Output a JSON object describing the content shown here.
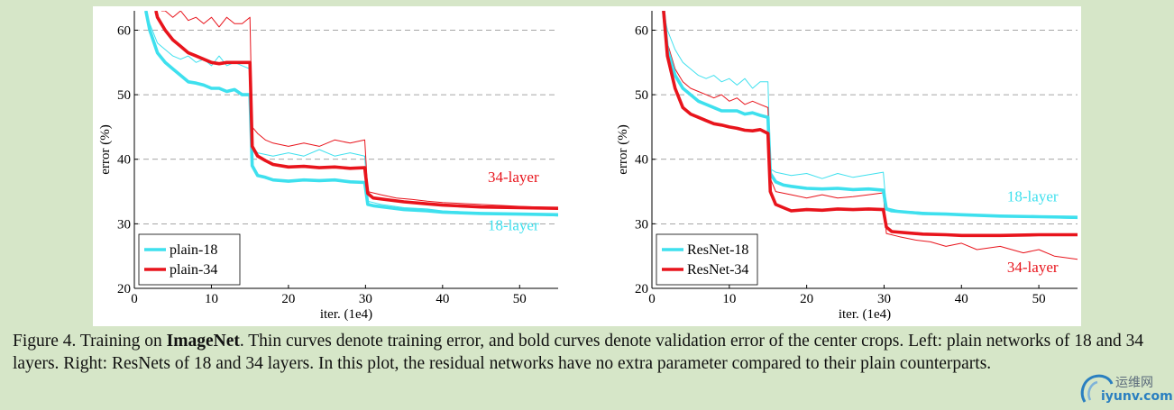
{
  "chart_data": [
    {
      "type": "line",
      "xlabel": "iter. (1e4)",
      "ylabel": "error (%)",
      "xlim": [
        0,
        55
      ],
      "ylim": [
        20,
        63
      ],
      "xticks": [
        0,
        10,
        20,
        30,
        40,
        50
      ],
      "yticks": [
        20,
        30,
        40,
        50,
        60
      ],
      "grid": "horizontal dashed",
      "legend": "bottom-left",
      "annotations": [
        {
          "text": "34-layer",
          "x": 52.5,
          "y": 36.5,
          "color": "#e8141c"
        },
        {
          "text": "18-layer",
          "x": 52.5,
          "y": 29.0,
          "color": "#3ee0ee"
        }
      ],
      "series": [
        {
          "name": "plain-18",
          "kind": "validation",
          "color": "#3ee0ee",
          "x": [
            1.5,
            2,
            3,
            4,
            5,
            6,
            7,
            8,
            9,
            10,
            11,
            12,
            13,
            14,
            15,
            15.3,
            16,
            17,
            18,
            20,
            22,
            24,
            26,
            28,
            29.9,
            30.3,
            31,
            33,
            35,
            38,
            40,
            45,
            50,
            55
          ],
          "y": [
            63,
            60,
            56.5,
            55,
            54,
            53,
            52,
            51.8,
            51.5,
            51,
            51,
            50.5,
            50.8,
            50,
            50,
            39,
            37.5,
            37.2,
            36.8,
            36.6,
            36.8,
            36.7,
            36.8,
            36.5,
            36.4,
            33,
            32.8,
            32.5,
            32.2,
            32,
            31.8,
            31.6,
            31.5,
            31.4
          ]
        },
        {
          "name": "plain-34",
          "kind": "validation",
          "color": "#e8141c",
          "x": [
            2.8,
            3,
            4,
            5,
            6,
            7,
            8,
            9,
            10,
            11,
            12,
            13,
            14,
            15,
            15.3,
            16,
            17,
            18,
            20,
            22,
            24,
            26,
            28,
            29.9,
            30.3,
            31,
            33,
            35,
            38,
            40,
            45,
            50,
            55
          ],
          "y": [
            63,
            62,
            60,
            58.5,
            57.5,
            56.5,
            56,
            55.5,
            55,
            54.8,
            55,
            55,
            55,
            55,
            42,
            40.5,
            39.8,
            39.2,
            38.8,
            38.9,
            38.7,
            38.8,
            38.6,
            38.7,
            34.7,
            34,
            33.7,
            33.4,
            33.1,
            32.9,
            32.6,
            32.5,
            32.4
          ]
        },
        {
          "name": "",
          "kind": "training",
          "label_ref": "plain-18",
          "color": "#3ee0ee",
          "x": [
            1.5,
            2,
            3,
            4,
            5,
            6,
            7,
            8,
            9,
            10,
            11,
            12,
            13,
            14,
            15,
            15.3,
            16,
            18,
            20,
            22,
            24,
            26,
            28,
            29.9,
            30.3,
            32,
            35,
            38,
            40,
            45,
            50,
            55
          ],
          "y": [
            63,
            61,
            58,
            57,
            56,
            55.5,
            56,
            55,
            55.5,
            54.5,
            56,
            54.5,
            55,
            54.5,
            54,
            42,
            41,
            40.5,
            41,
            40.5,
            41.5,
            40.5,
            41,
            40.5,
            33.5,
            33,
            32.5,
            32.3,
            32,
            31.7,
            31.5,
            31.2
          ]
        },
        {
          "name": "",
          "kind": "training",
          "label_ref": "plain-34",
          "color": "#e8141c",
          "x": [
            3.5,
            4,
            5,
            6,
            7,
            8,
            9,
            10,
            11,
            12,
            13,
            14,
            15,
            15.3,
            16,
            17,
            18,
            20,
            22,
            24,
            26,
            28,
            29.9,
            30.3,
            32,
            34,
            36,
            38,
            40,
            45,
            50,
            55
          ],
          "y": [
            63,
            63,
            62,
            63,
            61.5,
            62,
            61,
            62,
            60.5,
            62,
            61,
            61,
            62,
            45,
            44,
            43,
            42.5,
            42,
            42.5,
            42,
            43,
            42.5,
            43,
            35,
            34.5,
            34,
            33.8,
            33.5,
            33.3,
            33,
            32.7,
            32.5
          ]
        }
      ],
      "legend_entries": [
        "plain-18",
        "plain-34"
      ]
    },
    {
      "type": "line",
      "xlabel": "iter. (1e4)",
      "ylabel": "error (%)",
      "xlim": [
        0,
        55
      ],
      "ylim": [
        20,
        63
      ],
      "xticks": [
        0,
        10,
        20,
        30,
        40,
        50
      ],
      "yticks": [
        20,
        30,
        40,
        50,
        60
      ],
      "grid": "horizontal dashed",
      "legend": "bottom-left",
      "annotations": [
        {
          "text": "18-layer",
          "x": 52.5,
          "y": 33.5,
          "color": "#3ee0ee"
        },
        {
          "text": "34-layer",
          "x": 52.5,
          "y": 22.5,
          "color": "#e8141c"
        }
      ],
      "series": [
        {
          "name": "ResNet-18",
          "kind": "validation",
          "color": "#3ee0ee",
          "x": [
            1.5,
            2,
            3,
            4,
            5,
            6,
            7,
            8,
            9,
            10,
            11,
            12,
            13,
            14,
            15,
            15.3,
            16,
            17,
            18,
            20,
            22,
            24,
            26,
            28,
            29.9,
            30.3,
            31,
            33,
            35,
            38,
            40,
            45,
            50,
            55
          ],
          "y": [
            63,
            57,
            53,
            51,
            50,
            49,
            48.5,
            48,
            47.5,
            47.5,
            47.5,
            47,
            47.2,
            46.8,
            46.5,
            37.8,
            36.5,
            36,
            35.8,
            35.5,
            35.4,
            35.5,
            35.3,
            35.4,
            35.2,
            32.3,
            32,
            31.8,
            31.6,
            31.5,
            31.4,
            31.2,
            31.1,
            31.0
          ]
        },
        {
          "name": "ResNet-34",
          "kind": "validation",
          "color": "#e8141c",
          "x": [
            1.5,
            2,
            3,
            4,
            5,
            6,
            7,
            8,
            9,
            10,
            11,
            12,
            13,
            14,
            15,
            15.3,
            16,
            17,
            18,
            20,
            22,
            24,
            26,
            28,
            29.9,
            30.3,
            31,
            33,
            35,
            38,
            40,
            45,
            50,
            55
          ],
          "y": [
            63,
            56,
            51,
            48,
            47,
            46.5,
            46,
            45.5,
            45.3,
            45,
            44.8,
            44.5,
            44.4,
            44.6,
            44,
            35,
            33,
            32.5,
            32,
            32.2,
            32.1,
            32.3,
            32.2,
            32.3,
            32.2,
            29.5,
            28.8,
            28.6,
            28.4,
            28.3,
            28.2,
            28.2,
            28.3,
            28.3
          ]
        },
        {
          "name": "",
          "kind": "training",
          "label_ref": "ResNet-18",
          "color": "#3ee0ee",
          "x": [
            1.5,
            2,
            3,
            4,
            5,
            6,
            7,
            8,
            9,
            10,
            11,
            12,
            13,
            14,
            15,
            15.3,
            16,
            18,
            20,
            22,
            24,
            26,
            28,
            29.9,
            30.3,
            32,
            35,
            38,
            40,
            45,
            50,
            55
          ],
          "y": [
            63,
            60,
            57,
            55,
            54,
            53,
            52.5,
            53,
            52,
            52.5,
            51.5,
            52.5,
            51,
            52,
            52,
            38.5,
            38,
            37.5,
            37.8,
            37,
            37.8,
            37.2,
            37.6,
            38,
            32.5,
            32,
            31.8,
            31.5,
            31.3,
            31.1,
            31.0,
            30.8
          ]
        },
        {
          "name": "",
          "kind": "training",
          "label_ref": "ResNet-34",
          "color": "#e8141c",
          "x": [
            1.5,
            2,
            3,
            4,
            5,
            6,
            7,
            8,
            9,
            10,
            11,
            12,
            13,
            14,
            15,
            15.3,
            16,
            18,
            20,
            22,
            24,
            26,
            28,
            29.9,
            30.3,
            32,
            34,
            36,
            38,
            40,
            42,
            45,
            48,
            50,
            52,
            55
          ],
          "y": [
            63,
            58,
            54,
            52,
            51,
            50.5,
            50,
            49.5,
            50,
            49,
            49.5,
            48.5,
            49,
            48.5,
            48,
            37,
            35,
            34.5,
            34,
            34.5,
            34,
            34.2,
            34.5,
            34.8,
            28.5,
            28,
            27.5,
            27.2,
            26.5,
            27,
            26,
            26.5,
            25.5,
            26,
            25,
            24.5
          ]
        }
      ],
      "legend_entries": [
        "ResNet-18",
        "ResNet-34"
      ]
    }
  ],
  "caption": {
    "prefix": "Figure 4. Training on ",
    "bold": "ImageNet",
    "rest": ". Thin curves denote training error, and bold curves denote validation error of the center crops. Left: plain networks of 18 and 34 layers. Right: ResNets of 18 and 34 layers. In this plot, the residual networks have no extra parameter compared to their plain counterparts."
  },
  "watermark": {
    "top": "运维网",
    "bottom": "iyunv.com"
  }
}
